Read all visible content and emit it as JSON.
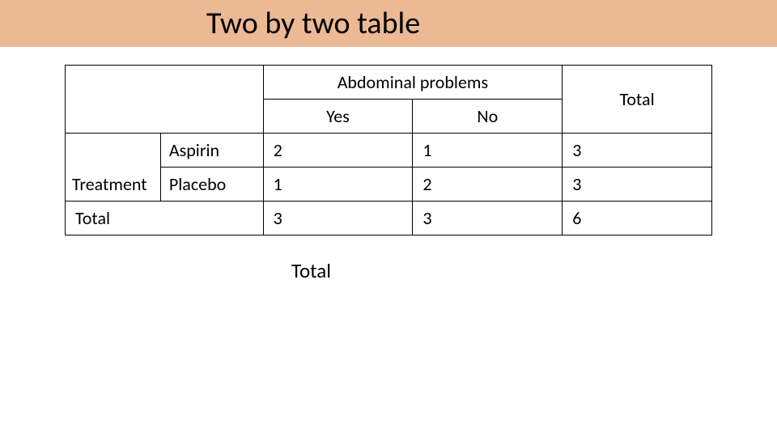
{
  "title": "Two by two table",
  "title_bar_color": "#ecb995",
  "table": {
    "outcome_header": "Abdominal problems",
    "col_yes": "Yes",
    "col_no": "No",
    "col_total": "Total",
    "exposure_header": "Treatment",
    "row1_label": "Aspirin",
    "row2_label": "Placebo",
    "row_total_label": "Total",
    "cells": {
      "r1_yes": "2",
      "r1_no": "1",
      "r1_total": "3",
      "r2_yes": "1",
      "r2_no": "2",
      "r2_total": "3",
      "rt_yes": "3",
      "rt_no": "3",
      "rt_total": "6"
    }
  },
  "footer_label": "Total",
  "styling": {
    "font_family": "Calibri",
    "title_fontsize": 38,
    "table_fontsize": 22,
    "border_color": "#000000",
    "border_width": 1.5,
    "background_color": "#ffffff",
    "text_color": "#000000"
  }
}
